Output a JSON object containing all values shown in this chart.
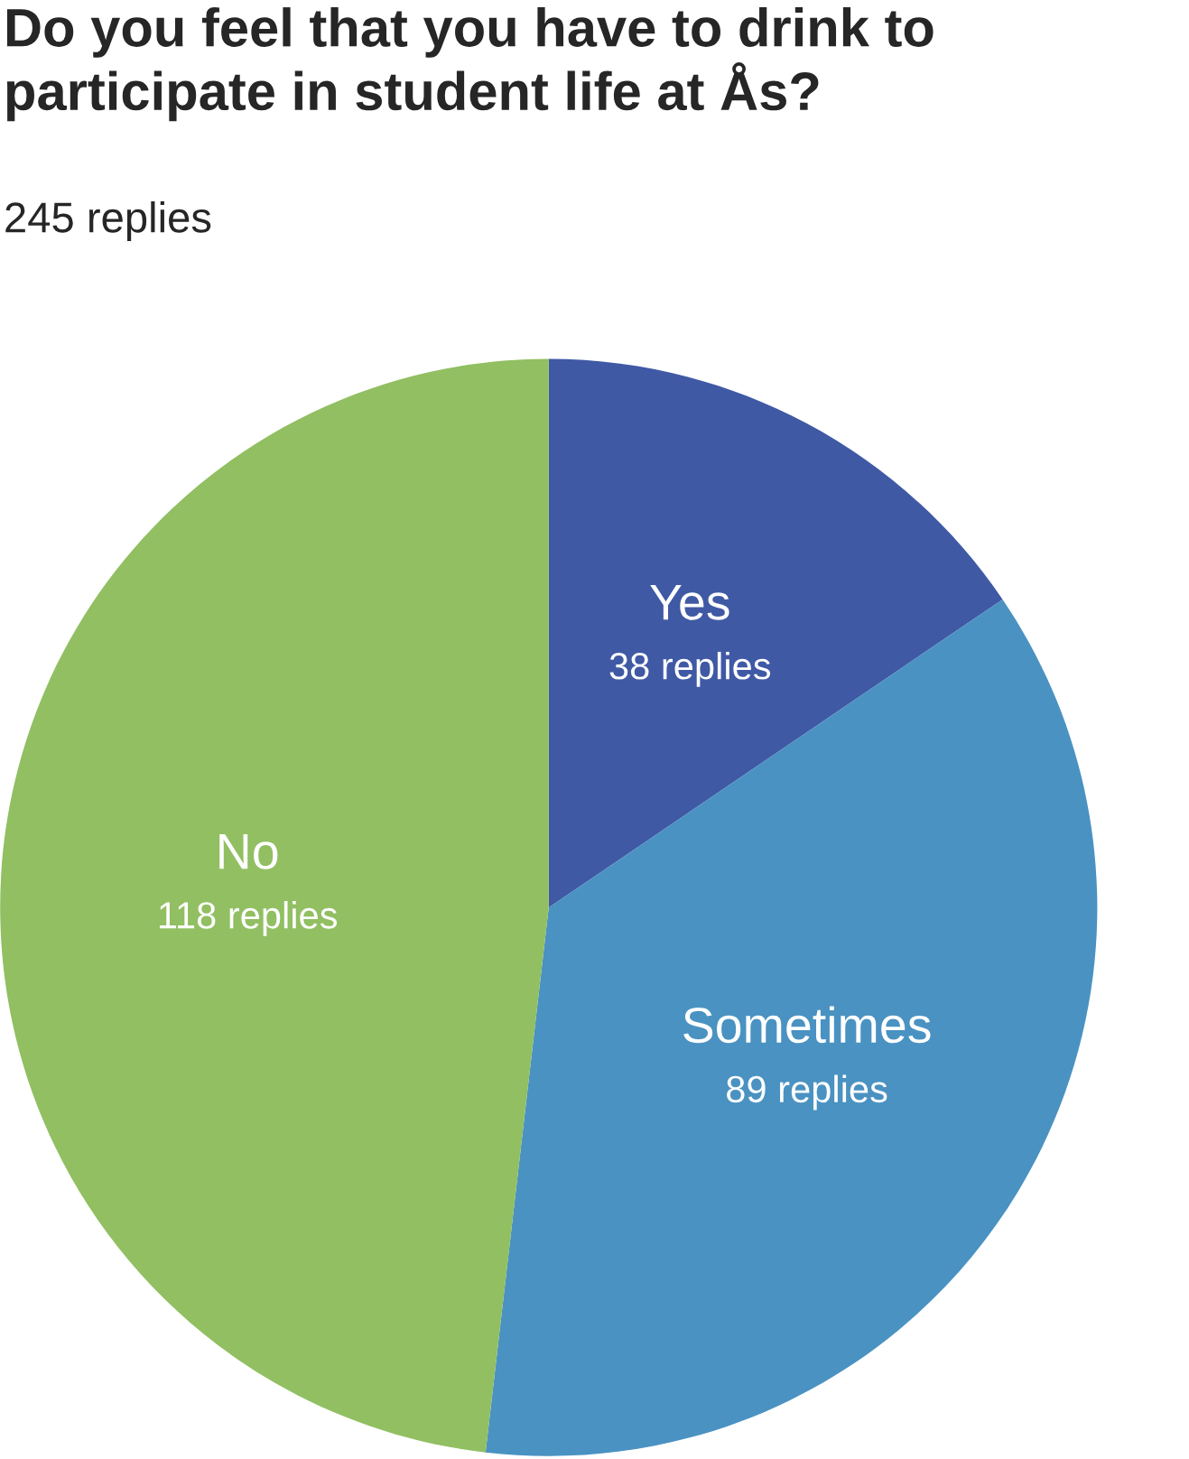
{
  "chart_data": {
    "type": "pie",
    "title": "Do you feel that you have to drink to participate in student life at Ås?",
    "subtitle": "245 replies",
    "categories": [
      "Yes",
      "Sometimes",
      "No"
    ],
    "values": [
      38,
      89,
      118
    ],
    "value_labels": [
      "38 replies",
      "89 replies",
      "118 replies"
    ],
    "colors": [
      "#3f59a5",
      "#4a92c2",
      "#91bf62"
    ]
  }
}
